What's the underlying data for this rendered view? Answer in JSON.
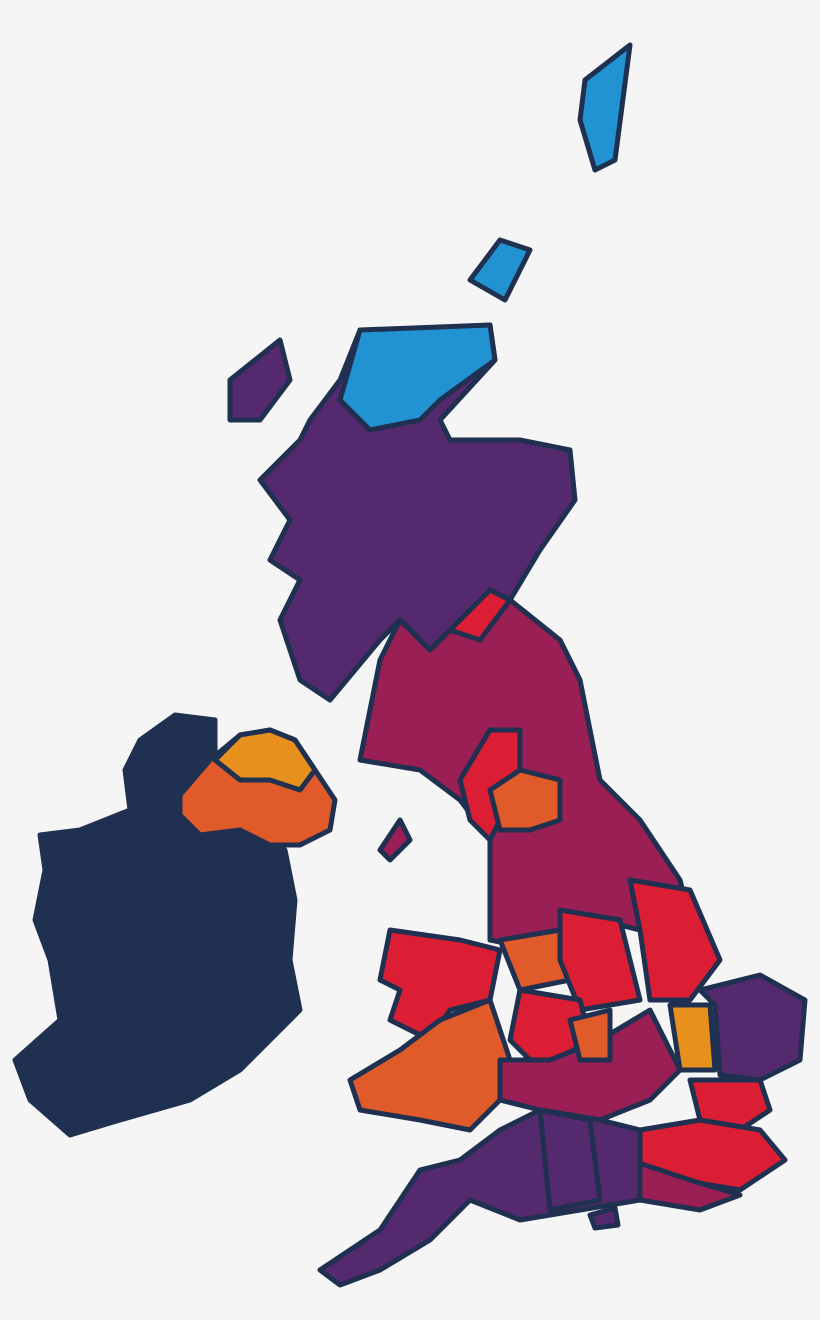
{
  "map": {
    "background": "#f5f5f5",
    "outline_color": "#1f3050",
    "palette": {
      "navy": "#1f3050",
      "purple": "#55296e",
      "crimson": "#9a1f55",
      "red": "#dc1e34",
      "orange_red": "#e05a2a",
      "orange": "#e8901e",
      "blue": "#2193d3"
    }
  }
}
